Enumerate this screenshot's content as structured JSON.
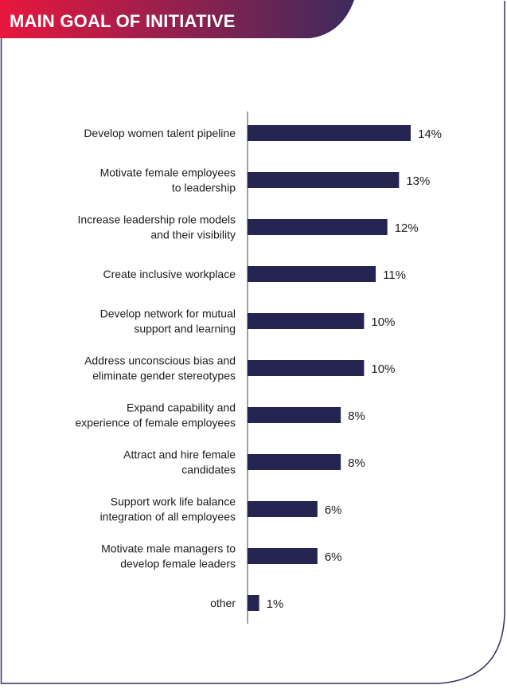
{
  "header": {
    "title": "MAIN GOAL OF INITIATIVE"
  },
  "colors": {
    "header_gradient_start": "#e8173e",
    "header_gradient_end": "#3d2a5e",
    "border": "#3d2a5e",
    "bar": "#262552"
  },
  "chart_data": {
    "type": "bar",
    "orientation": "horizontal",
    "categories": [
      [
        "Develop women talent pipeline"
      ],
      [
        "Motivate female employees",
        "to leadership"
      ],
      [
        "Increase leadership role models",
        "and their visibility"
      ],
      [
        "Create inclusive workplace"
      ],
      [
        "Develop network for mutual",
        "support and learning"
      ],
      [
        "Address unconscious bias and",
        "eliminate gender stereotypes"
      ],
      [
        "Expand capability and",
        "experience of female employees"
      ],
      [
        "Attract and hire female",
        "candidates"
      ],
      [
        "Support work life balance",
        "integration of all employees"
      ],
      [
        "Motivate male managers to",
        "develop female leaders"
      ],
      [
        "other"
      ]
    ],
    "values": [
      14,
      13,
      12,
      11,
      10,
      10,
      8,
      8,
      6,
      6,
      1
    ],
    "value_labels": [
      "14%",
      "13%",
      "12%",
      "11%",
      "10%",
      "10%",
      "8%",
      "8%",
      "6%",
      "6%",
      "1%"
    ],
    "xlim": [
      0,
      14
    ],
    "grid": false,
    "legend": "none"
  }
}
